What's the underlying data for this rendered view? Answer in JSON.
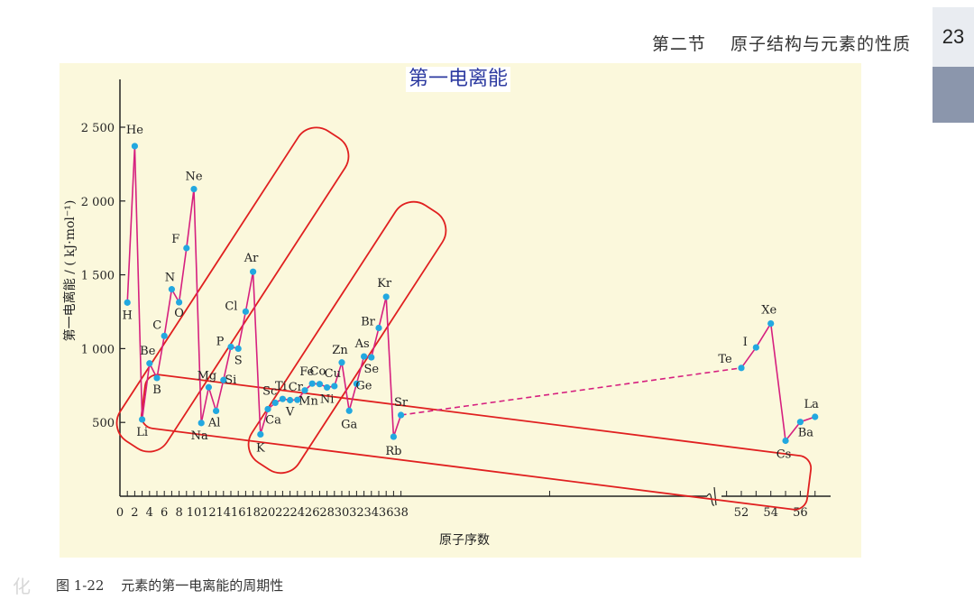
{
  "header": {
    "section": "第二节",
    "title": "原子结构与元素的性质",
    "page_number": "23"
  },
  "caption": {
    "number": "图 1-22",
    "text": "元素的第一电离能的周期性"
  },
  "corner_glyph": "化",
  "colors": {
    "line": "#d6207f",
    "point": "#22a8e0",
    "frame": "#e02020",
    "background": "#fbf8dc",
    "title": "#2c3aa0"
  },
  "chart_data": {
    "type": "line",
    "title": "第一电离能",
    "xlabel": "原子序数",
    "ylabel": "第一电离能 / ( kJ·mol⁻¹)",
    "ylim": [
      0,
      2500
    ],
    "yticks": [
      500,
      1000,
      1500,
      2000,
      2500
    ],
    "ytick_labels": [
      "500",
      "1 000",
      "1 500",
      "2 000",
      "2 500"
    ],
    "xticks": [
      0,
      2,
      4,
      6,
      8,
      10,
      12,
      14,
      16,
      18,
      20,
      22,
      24,
      26,
      28,
      30,
      32,
      34,
      36,
      38,
      52,
      54,
      56
    ],
    "axis_break": [
      38,
      52
    ],
    "grid": false,
    "series": [
      {
        "points": [
          {
            "x": 1,
            "y": 1312,
            "label": "H"
          },
          {
            "x": 2,
            "y": 2372,
            "label": "He"
          },
          {
            "x": 3,
            "y": 520,
            "label": "Li"
          },
          {
            "x": 4,
            "y": 900,
            "label": "Be"
          },
          {
            "x": 5,
            "y": 801,
            "label": "B"
          },
          {
            "x": 6,
            "y": 1086,
            "label": "C"
          },
          {
            "x": 7,
            "y": 1402,
            "label": "N"
          },
          {
            "x": 8,
            "y": 1314,
            "label": "O"
          },
          {
            "x": 9,
            "y": 1681,
            "label": "F"
          },
          {
            "x": 10,
            "y": 2081,
            "label": "Ne"
          },
          {
            "x": 11,
            "y": 496,
            "label": "Na"
          },
          {
            "x": 12,
            "y": 738,
            "label": "Mg"
          },
          {
            "x": 13,
            "y": 578,
            "label": "Al"
          },
          {
            "x": 14,
            "y": 787,
            "label": "Si"
          },
          {
            "x": 15,
            "y": 1012,
            "label": "P"
          },
          {
            "x": 16,
            "y": 1000,
            "label": "S"
          },
          {
            "x": 17,
            "y": 1251,
            "label": "Cl"
          },
          {
            "x": 18,
            "y": 1521,
            "label": "Ar"
          },
          {
            "x": 19,
            "y": 419,
            "label": "K"
          },
          {
            "x": 20,
            "y": 590,
            "label": "Ca"
          },
          {
            "x": 21,
            "y": 633,
            "label": "Sc"
          },
          {
            "x": 22,
            "y": 659,
            "label": "Ti"
          },
          {
            "x": 23,
            "y": 651,
            "label": "V"
          },
          {
            "x": 24,
            "y": 653,
            "label": "Cr"
          },
          {
            "x": 25,
            "y": 717,
            "label": "Mn"
          },
          {
            "x": 26,
            "y": 763,
            "label": "Fe"
          },
          {
            "x": 27,
            "y": 760,
            "label": "Co"
          },
          {
            "x": 28,
            "y": 737,
            "label": "Ni"
          },
          {
            "x": 29,
            "y": 746,
            "label": "Cu"
          },
          {
            "x": 30,
            "y": 906,
            "label": "Zn"
          },
          {
            "x": 31,
            "y": 579,
            "label": "Ga"
          },
          {
            "x": 32,
            "y": 762,
            "label": "Ge"
          },
          {
            "x": 33,
            "y": 947,
            "label": "As"
          },
          {
            "x": 34,
            "y": 941,
            "label": "Se"
          },
          {
            "x": 35,
            "y": 1140,
            "label": "Br"
          },
          {
            "x": 36,
            "y": 1351,
            "label": "Kr"
          },
          {
            "x": 37,
            "y": 403,
            "label": "Rb"
          },
          {
            "x": 38,
            "y": 550,
            "label": "Sr"
          },
          {
            "x": 52,
            "y": 869,
            "label": "Te",
            "dashed_from_prev": true
          },
          {
            "x": 53,
            "y": 1008,
            "label": "I"
          },
          {
            "x": 54,
            "y": 1170,
            "label": "Xe"
          },
          {
            "x": 55,
            "y": 376,
            "label": "Cs"
          },
          {
            "x": 56,
            "y": 503,
            "label": "Ba"
          },
          {
            "x": 57,
            "y": 538,
            "label": "La"
          }
        ]
      }
    ],
    "annotations": [
      "red rounded frame around Li–Ne",
      "red rounded frame around Na–Ar",
      "red rounded frame around alkali metals Li, Na, K, Rb, Cs"
    ]
  }
}
